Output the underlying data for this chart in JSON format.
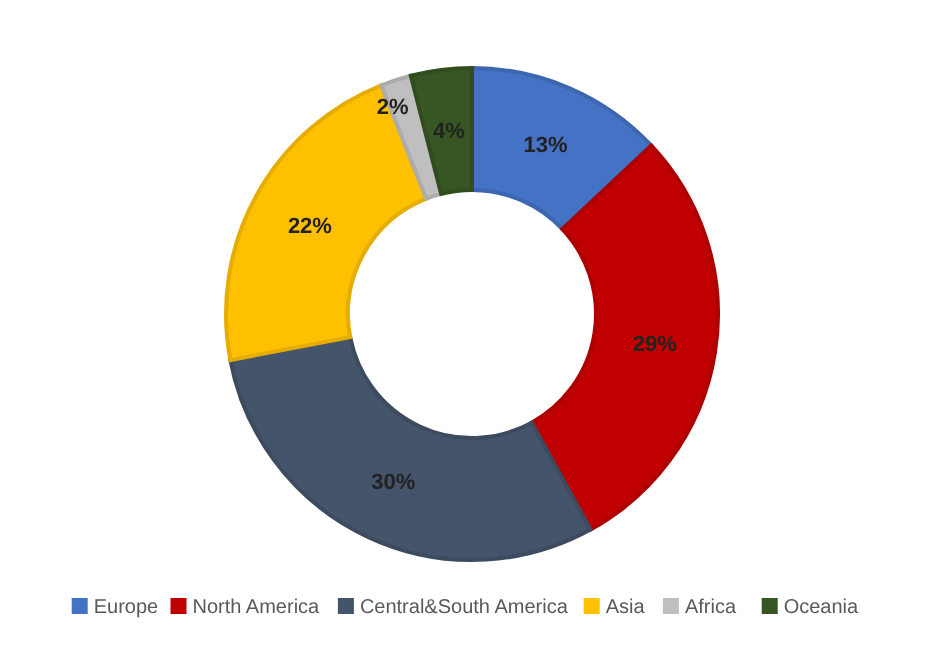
{
  "chart_data": {
    "type": "donut",
    "categories": [
      "Europe",
      "North America",
      "Central&South America",
      "Asia",
      "Africa",
      "Oceania"
    ],
    "values": [
      13,
      29,
      30,
      22,
      2,
      4
    ],
    "colors": [
      "#4472c4",
      "#c00000",
      "#44546a",
      "#ffc000",
      "#bfbfbf",
      "#375623"
    ],
    "value_labels": [
      "13%",
      "29%",
      "30%",
      "22%",
      "2%",
      "4%"
    ],
    "legend": "bottom"
  }
}
